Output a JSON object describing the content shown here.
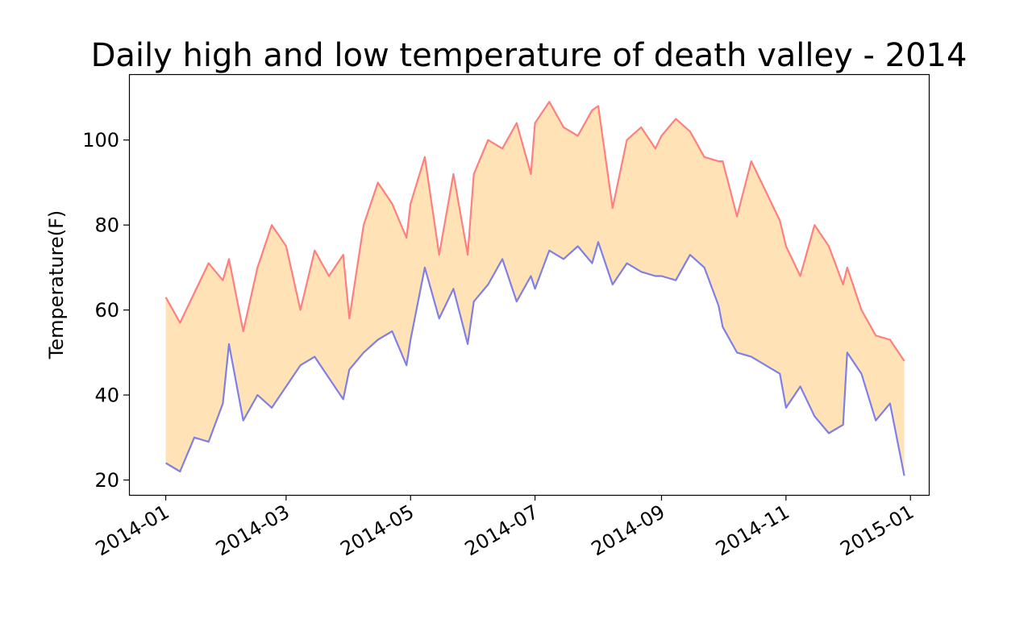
{
  "chart_data": {
    "type": "line",
    "title": "Daily high and low temperature of death valley - 2014",
    "xlabel": "",
    "ylabel": "Temperature(F)",
    "x_range": [
      "2013-12-14",
      "2015-01-10"
    ],
    "ylim": [
      16.5,
      115.5
    ],
    "x_ticks": [
      "2014-01",
      "2014-03",
      "2014-05",
      "2014-07",
      "2014-09",
      "2014-11",
      "2015-01"
    ],
    "y_ticks": [
      20,
      40,
      60,
      80,
      100
    ],
    "grid": false,
    "legend": "none",
    "fill_between": true,
    "colors": {
      "high": "#ff7f7f",
      "low": "#7f7fe6",
      "fill": "#ffe3b7"
    },
    "series": [
      {
        "key": "high",
        "x": [
          "2014-01-01",
          "2014-01-08",
          "2014-01-15",
          "2014-01-22",
          "2014-01-29",
          "2014-02-01",
          "2014-02-08",
          "2014-02-15",
          "2014-02-22",
          "2014-03-01",
          "2014-03-08",
          "2014-03-15",
          "2014-03-22",
          "2014-03-29",
          "2014-04-01",
          "2014-04-08",
          "2014-04-15",
          "2014-04-22",
          "2014-04-29",
          "2014-05-01",
          "2014-05-08",
          "2014-05-15",
          "2014-05-22",
          "2014-05-29",
          "2014-06-01",
          "2014-06-08",
          "2014-06-15",
          "2014-06-22",
          "2014-06-29",
          "2014-07-01",
          "2014-07-08",
          "2014-07-15",
          "2014-07-22",
          "2014-07-29",
          "2014-08-01",
          "2014-08-08",
          "2014-08-15",
          "2014-08-22",
          "2014-08-29",
          "2014-09-01",
          "2014-09-08",
          "2014-09-15",
          "2014-09-22",
          "2014-09-29",
          "2014-10-01",
          "2014-10-08",
          "2014-10-15",
          "2014-10-22",
          "2014-10-29",
          "2014-11-01",
          "2014-11-08",
          "2014-11-15",
          "2014-11-22",
          "2014-11-29",
          "2014-12-01",
          "2014-12-08",
          "2014-12-15",
          "2014-12-22",
          "2014-12-29"
        ],
        "values": [
          63,
          57,
          64,
          71,
          67,
          72,
          55,
          70,
          80,
          75,
          60,
          74,
          68,
          73,
          58,
          80,
          90,
          85,
          77,
          85,
          96,
          73,
          92,
          73,
          92,
          100,
          98,
          104,
          92,
          104,
          109,
          103,
          101,
          107,
          108,
          84,
          100,
          103,
          98,
          101,
          105,
          102,
          96,
          95,
          95,
          82,
          95,
          88,
          81,
          75,
          68,
          80,
          75,
          66,
          70,
          60,
          54,
          53,
          48
        ]
      },
      {
        "key": "low",
        "x": [
          "2014-01-01",
          "2014-01-08",
          "2014-01-15",
          "2014-01-22",
          "2014-01-29",
          "2014-02-01",
          "2014-02-08",
          "2014-02-15",
          "2014-02-22",
          "2014-03-01",
          "2014-03-08",
          "2014-03-15",
          "2014-03-22",
          "2014-03-29",
          "2014-04-01",
          "2014-04-08",
          "2014-04-15",
          "2014-04-22",
          "2014-04-29",
          "2014-05-01",
          "2014-05-08",
          "2014-05-15",
          "2014-05-22",
          "2014-05-29",
          "2014-06-01",
          "2014-06-08",
          "2014-06-15",
          "2014-06-22",
          "2014-06-29",
          "2014-07-01",
          "2014-07-08",
          "2014-07-15",
          "2014-07-22",
          "2014-07-29",
          "2014-08-01",
          "2014-08-08",
          "2014-08-15",
          "2014-08-22",
          "2014-08-29",
          "2014-09-01",
          "2014-09-08",
          "2014-09-15",
          "2014-09-22",
          "2014-09-29",
          "2014-10-01",
          "2014-10-08",
          "2014-10-15",
          "2014-10-22",
          "2014-10-29",
          "2014-11-01",
          "2014-11-08",
          "2014-11-15",
          "2014-11-22",
          "2014-11-29",
          "2014-12-01",
          "2014-12-08",
          "2014-12-15",
          "2014-12-22",
          "2014-12-29"
        ],
        "values": [
          24,
          22,
          30,
          29,
          38,
          52,
          34,
          40,
          37,
          42,
          47,
          49,
          44,
          39,
          46,
          50,
          53,
          55,
          47,
          53,
          70,
          58,
          65,
          52,
          62,
          66,
          72,
          62,
          68,
          65,
          74,
          72,
          75,
          71,
          76,
          66,
          71,
          69,
          68,
          68,
          67,
          73,
          70,
          61,
          56,
          50,
          49,
          47,
          45,
          37,
          42,
          35,
          31,
          33,
          50,
          45,
          34,
          38,
          21
        ]
      }
    ]
  }
}
